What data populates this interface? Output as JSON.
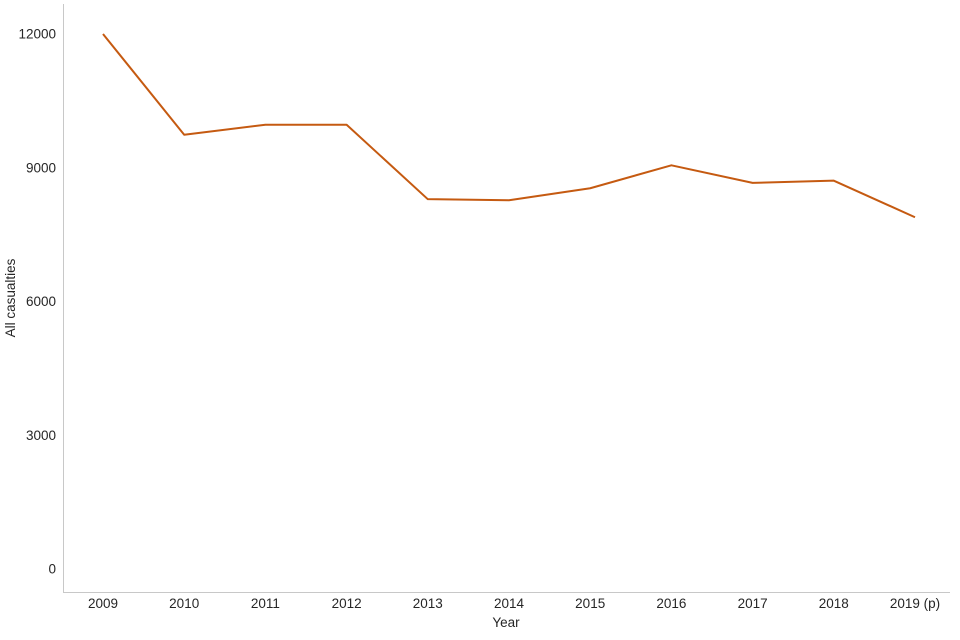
{
  "chart_data": {
    "type": "line",
    "title": "",
    "xlabel": "Year",
    "ylabel": "All casualties",
    "categories": [
      "2009",
      "2010",
      "2011",
      "2012",
      "2013",
      "2014",
      "2015",
      "2016",
      "2017",
      "2018",
      "2019 (p)"
    ],
    "series": [
      {
        "name": "All casualties",
        "values": [
          12000,
          9740,
          9965,
          9965,
          8295,
          8270,
          8540,
          9055,
          8660,
          8710,
          7890
        ]
      }
    ],
    "y_ticks": [
      0,
      3000,
      6000,
      9000,
      12000
    ],
    "y_tick_labels": [
      "0",
      "3000",
      "6000",
      "9000",
      "12000"
    ],
    "ylim": [
      0,
      12000
    ],
    "grid": false,
    "legend_position": "none",
    "colors": {
      "line": "#C55A11",
      "axis": "#C8C8C8",
      "text": "#262626"
    }
  }
}
